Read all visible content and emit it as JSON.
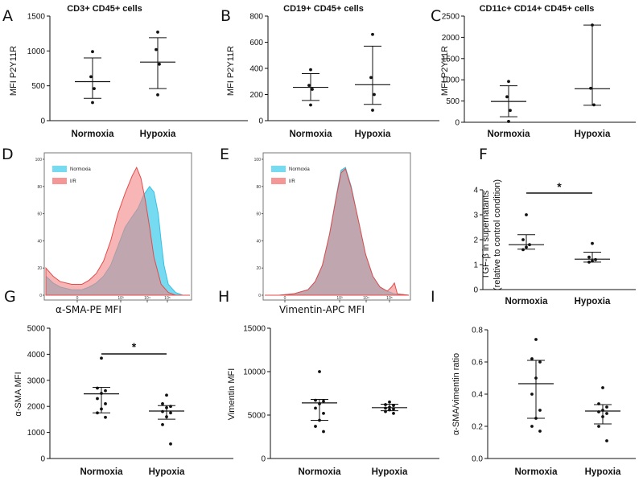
{
  "chart_data": [
    {
      "id": "A",
      "type": "scatter",
      "title": "CD3+ CD45+ cells",
      "ylabel": "MFI P2Y11R",
      "ylim": [
        0,
        1500
      ],
      "yticks": [
        "0",
        "500",
        "1000",
        "1500"
      ],
      "ytick_values": [
        0,
        500,
        1000,
        1500
      ],
      "categories": [
        "Normoxia",
        "Hypoxia"
      ],
      "groups": [
        {
          "name": "Normoxia",
          "points": [
            990,
            630,
            460,
            260
          ],
          "mean": 560,
          "upper": 900,
          "lower": 320
        },
        {
          "name": "Hypoxia",
          "points": [
            1270,
            1020,
            810,
            370
          ],
          "mean": 840,
          "upper": 1190,
          "lower": 460
        }
      ]
    },
    {
      "id": "B",
      "type": "scatter",
      "title": "CD19+ CD45+ cells",
      "ylabel": "MFI P2Y11R",
      "ylim": [
        0,
        800
      ],
      "yticks": [
        "0",
        "200",
        "400",
        "600",
        "800"
      ],
      "ytick_values": [
        0,
        200,
        400,
        600,
        800
      ],
      "categories": [
        "Normoxia",
        "Hypoxia"
      ],
      "groups": [
        {
          "name": "Normoxia",
          "points": [
            390,
            270,
            240,
            120
          ],
          "mean": 255,
          "upper": 360,
          "lower": 155
        },
        {
          "name": "Hypoxia",
          "points": [
            660,
            330,
            200,
            80
          ],
          "mean": 275,
          "upper": 570,
          "lower": 125
        }
      ]
    },
    {
      "id": "C",
      "type": "scatter",
      "title": "CD11c+ CD14+ CD45+ cells",
      "ylabel": "MFI P2Y11R",
      "ylim": [
        0,
        2500
      ],
      "yticks": [
        "0",
        "500",
        "1000",
        "1500",
        "2000",
        "2500"
      ],
      "ytick_values": [
        0,
        500,
        1000,
        1500,
        2000,
        2500
      ],
      "categories": [
        "Normoxia",
        "Hypoxia"
      ],
      "groups": [
        {
          "name": "Normoxia",
          "points": [
            960,
            600,
            280,
            20
          ],
          "mean": 490,
          "upper": 860,
          "lower": 130
        },
        {
          "name": "Hypoxia",
          "points": [
            2290,
            800,
            410
          ],
          "mean": 790,
          "upper": 2290,
          "lower": 400
        }
      ]
    },
    {
      "id": "D",
      "type": "area",
      "xlabel": "α-SMA-PE MFI",
      "yticks": [
        "0",
        "20",
        "40",
        "60",
        "80",
        "100"
      ],
      "ytick_values": [
        0,
        20,
        40,
        60,
        80,
        100
      ],
      "xticks": [
        "0",
        "10³",
        "10⁴",
        "10⁵"
      ],
      "legend": [
        "Normoxia",
        "I/R"
      ],
      "series": [
        {
          "name": "Normoxia",
          "color": "#5ed3ef",
          "x": [
            0,
            0.05,
            0.1,
            0.18,
            0.25,
            0.3,
            0.35,
            0.4,
            0.45,
            0.5,
            0.55,
            0.6,
            0.64,
            0.68,
            0.72,
            0.75,
            0.78,
            0.8,
            0.82,
            0.85,
            0.9,
            0.95,
            1
          ],
          "y": [
            14,
            9,
            6,
            4,
            4,
            6,
            9,
            14,
            22,
            36,
            50,
            58,
            64,
            74,
            80,
            76,
            60,
            40,
            22,
            8,
            2,
            0,
            0
          ]
        },
        {
          "name": "I/R",
          "color": "#f28584",
          "x": [
            0,
            0.05,
            0.1,
            0.18,
            0.25,
            0.3,
            0.35,
            0.4,
            0.45,
            0.5,
            0.55,
            0.6,
            0.63,
            0.66,
            0.69,
            0.72,
            0.75,
            0.8,
            0.85,
            0.9,
            1
          ],
          "y": [
            20,
            14,
            10,
            8,
            8,
            11,
            16,
            25,
            40,
            60,
            75,
            88,
            94,
            86,
            70,
            50,
            28,
            8,
            2,
            0,
            0
          ]
        }
      ]
    },
    {
      "id": "E",
      "type": "area",
      "xlabel": "Vimentin-APC MFI",
      "yticks": [
        "0",
        "20",
        "40",
        "60",
        "80",
        "100"
      ],
      "ytick_values": [
        0,
        20,
        40,
        60,
        80,
        100
      ],
      "xticks": [
        "0",
        "10³",
        "10⁴",
        "10⁵"
      ],
      "legend": [
        "Normoxia",
        "I/R"
      ],
      "series": [
        {
          "name": "Normoxia",
          "color": "#5ed3ef",
          "x": [
            0,
            0.1,
            0.2,
            0.3,
            0.35,
            0.4,
            0.45,
            0.5,
            0.53,
            0.56,
            0.6,
            0.65,
            0.7,
            0.75,
            0.8,
            0.85,
            0.9,
            1
          ],
          "y": [
            0,
            0,
            1,
            4,
            10,
            22,
            45,
            75,
            92,
            94,
            80,
            55,
            30,
            14,
            6,
            3,
            1,
            0
          ]
        },
        {
          "name": "I/R",
          "color": "#f28584",
          "x": [
            0,
            0.1,
            0.2,
            0.3,
            0.35,
            0.4,
            0.45,
            0.5,
            0.53,
            0.56,
            0.6,
            0.65,
            0.7,
            0.75,
            0.8,
            0.85,
            0.88,
            0.9,
            0.92,
            1
          ],
          "y": [
            0,
            0,
            1,
            4,
            10,
            22,
            45,
            74,
            90,
            93,
            79,
            55,
            30,
            14,
            6,
            3,
            6,
            9,
            1,
            0
          ]
        }
      ]
    },
    {
      "id": "F",
      "type": "scatter",
      "ylabel": "TGF-β in supernatants (relative to control condition)",
      "ylabel_lines": [
        "TGF-β in supernatants",
        "(relative to control condition)"
      ],
      "ylim": [
        0,
        4
      ],
      "yticks": [
        "0",
        "1",
        "2",
        "3",
        "4"
      ],
      "ytick_values": [
        0,
        1,
        2,
        3,
        4
      ],
      "categories": [
        "Normoxia",
        "Hypoxia"
      ],
      "significance": "*",
      "groups": [
        {
          "name": "Normoxia",
          "points": [
            3.0,
            2.0,
            1.8,
            1.7,
            1.6
          ],
          "mean": 1.8,
          "upper": 2.2,
          "lower": 1.62
        },
        {
          "name": "Hypoxia",
          "points": [
            1.85,
            1.3,
            1.2,
            1.15,
            1.1
          ],
          "mean": 1.22,
          "upper": 1.5,
          "lower": 1.1
        }
      ]
    },
    {
      "id": "G",
      "type": "scatter",
      "ylabel": "α-SMA MFI",
      "ylim": [
        0,
        5000
      ],
      "yticks": [
        "0",
        "1000",
        "2000",
        "3000",
        "4000",
        "5000"
      ],
      "ytick_values": [
        0,
        1000,
        2000,
        3000,
        4000,
        5000
      ],
      "categories": [
        "Normoxia",
        "Hypoxia"
      ],
      "significance": "*",
      "groups": [
        {
          "name": "Normoxia",
          "points": [
            3850,
            2700,
            2600,
            2500,
            2300,
            2100,
            1900,
            1750,
            1580
          ],
          "mean": 2480,
          "upper": 2730,
          "lower": 1750
        },
        {
          "name": "Hypoxia",
          "points": [
            2430,
            2100,
            2000,
            1950,
            1800,
            1750,
            1600,
            1300,
            560
          ],
          "mean": 1820,
          "upper": 2030,
          "lower": 1510
        }
      ]
    },
    {
      "id": "H",
      "type": "scatter",
      "ylabel": "Vimentin MFI",
      "ylim": [
        0,
        15000
      ],
      "yticks": [
        "0",
        "5000",
        "10000",
        "15000"
      ],
      "ytick_values": [
        0,
        5000,
        10000,
        15000
      ],
      "categories": [
        "Normoxia",
        "Hypoxia"
      ],
      "groups": [
        {
          "name": "Normoxia",
          "points": [
            10000,
            6700,
            6600,
            6300,
            5800,
            5200,
            4400,
            3700,
            3100
          ],
          "mean": 6400,
          "upper": 6800,
          "lower": 4400
        },
        {
          "name": "Hypoxia",
          "points": [
            6500,
            6200,
            6100,
            5900,
            5800,
            5700,
            5600,
            5400,
            5200
          ],
          "mean": 5850,
          "upper": 6250,
          "lower": 5500
        }
      ]
    },
    {
      "id": "I",
      "type": "scatter",
      "ylabel": "α-SMA/vimentin ratio",
      "ylim": [
        0,
        0.8
      ],
      "yticks": [
        "0.0",
        "0.2",
        "0.4",
        "0.6",
        "0.8"
      ],
      "ytick_values": [
        0,
        0.2,
        0.4,
        0.6,
        0.8
      ],
      "categories": [
        "Normoxia",
        "Hypoxia"
      ],
      "groups": [
        {
          "name": "Normoxia",
          "points": [
            0.74,
            0.62,
            0.6,
            0.5,
            0.4,
            0.3,
            0.25,
            0.2,
            0.17
          ],
          "mean": 0.465,
          "upper": 0.61,
          "lower": 0.25
        },
        {
          "name": "Hypoxia",
          "points": [
            0.44,
            0.34,
            0.32,
            0.3,
            0.29,
            0.28,
            0.26,
            0.2,
            0.11
          ],
          "mean": 0.295,
          "upper": 0.335,
          "lower": 0.215
        }
      ]
    }
  ]
}
